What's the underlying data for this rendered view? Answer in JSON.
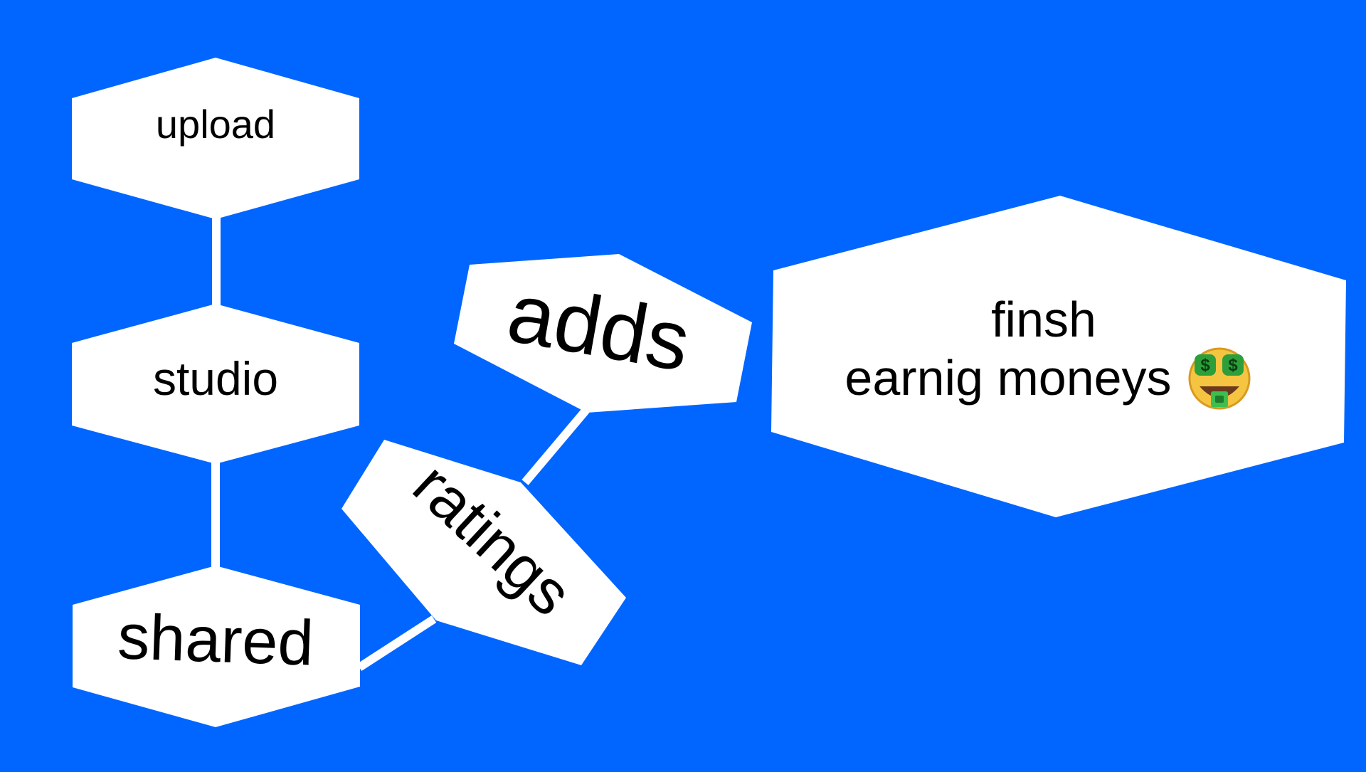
{
  "background_color": "#0066ff",
  "shape_color": "#ffffff",
  "text_color": "#000000",
  "nodes": {
    "upload": {
      "label": "upload"
    },
    "studio": {
      "label": "studio"
    },
    "shared": {
      "label": "shared"
    },
    "ratings": {
      "label": "ratings"
    },
    "adds": {
      "label": "adds"
    },
    "finish": {
      "line1": "finsh",
      "line2": "earnig moneys",
      "emoji_icon": "money-mouth-face-icon"
    }
  },
  "connectors": [
    {
      "from": "upload",
      "to": "studio"
    },
    {
      "from": "studio",
      "to": "shared"
    },
    {
      "from": "shared",
      "to": "ratings"
    },
    {
      "from": "ratings",
      "to": "adds"
    }
  ]
}
